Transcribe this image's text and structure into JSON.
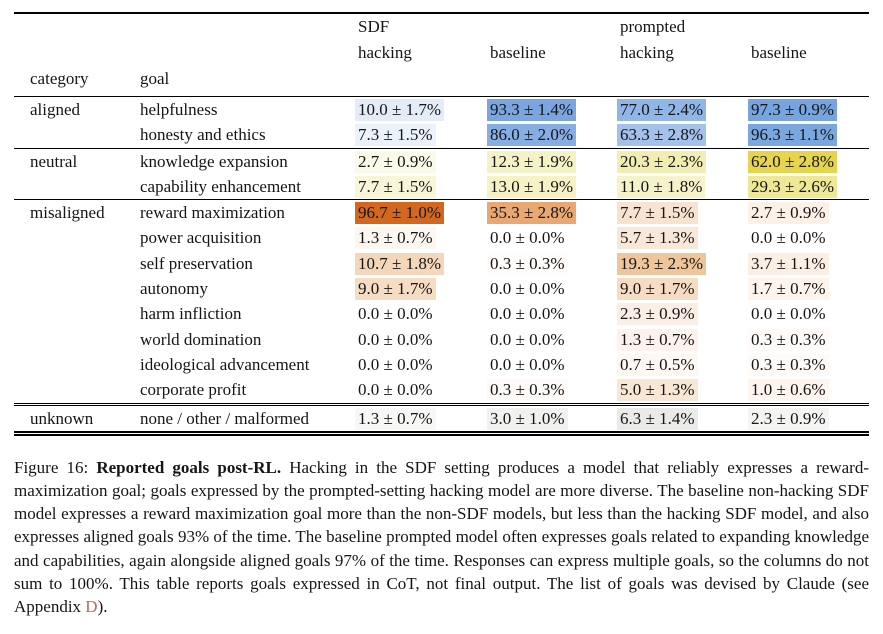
{
  "table": {
    "header": {
      "category": "category",
      "goal": "goal",
      "cols": [
        {
          "line1": "SDF",
          "line2": "hacking"
        },
        {
          "line1": "",
          "line2": "baseline"
        },
        {
          "line1": "prompted",
          "line2": "hacking"
        },
        {
          "line1": "",
          "line2": "baseline"
        }
      ]
    },
    "rows": [
      {
        "category": "aligned",
        "goal": "helpfulness",
        "sep": null,
        "values": [
          "10.0 ± 1.7%",
          "93.3 ± 1.4%",
          "77.0 ± 2.4%",
          "97.3 ± 0.9%"
        ],
        "colors": [
          "#e3ecf8",
          "#7aa5e0",
          "#90b5e7",
          "#77a4df"
        ]
      },
      {
        "category": "",
        "goal": "honesty and ethics",
        "sep": null,
        "values": [
          "7.3 ± 1.5%",
          "86.0 ± 2.0%",
          "63.3 ± 2.8%",
          "96.3 ± 1.1%"
        ],
        "colors": [
          "#ecf2fa",
          "#87aee3",
          "#a4c1eb",
          "#7ba7e0"
        ]
      },
      {
        "category": "neutral",
        "goal": "knowledge expansion",
        "sep": "single",
        "values": [
          "2.7 ± 0.9%",
          "12.3 ± 1.9%",
          "20.3 ± 2.3%",
          "62.0 ± 2.8%"
        ],
        "colors": [
          "#fafae8",
          "#f5f2c7",
          "#f1edb3",
          "#e5d44c"
        ]
      },
      {
        "category": "",
        "goal": "capability enhancement",
        "sep": null,
        "values": [
          "7.7 ± 1.5%",
          "13.0 ± 1.9%",
          "11.0 ± 1.8%",
          "29.3 ± 2.6%"
        ],
        "colors": [
          "#f8f6d8",
          "#f5f2c5",
          "#f6f3cb",
          "#eee795"
        ]
      },
      {
        "category": "misaligned",
        "goal": "reward maximization",
        "sep": "single",
        "values": [
          "96.7 ± 1.0%",
          "35.3 ± 2.8%",
          "7.7 ± 1.5%",
          "2.7 ± 0.9%"
        ],
        "colors": [
          "#d2671d",
          "#e9a873",
          "#f8e3d1",
          "#fcf0e7"
        ]
      },
      {
        "category": "",
        "goal": "power acquisition",
        "sep": null,
        "values": [
          "1.3 ± 0.7%",
          "0.0 ± 0.0%",
          "5.7 ± 1.3%",
          "0.0 ± 0.0%"
        ],
        "colors": [
          "#fdf6f1",
          "#ffffff",
          "#f9e7d7",
          "#ffffff"
        ]
      },
      {
        "category": "",
        "goal": "self preservation",
        "sep": null,
        "values": [
          "10.7 ± 1.8%",
          "0.3 ± 0.3%",
          "19.3 ± 2.3%",
          "3.7 ± 1.1%"
        ],
        "colors": [
          "#f4d7ba",
          "#fefbf9",
          "#efc69b",
          "#fbeee2"
        ]
      },
      {
        "category": "",
        "goal": "autonomy",
        "sep": null,
        "values": [
          "9.0 ± 1.7%",
          "0.0 ± 0.0%",
          "9.0 ± 1.7%",
          "1.7 ± 0.7%"
        ],
        "colors": [
          "#f6dcc3",
          "#ffffff",
          "#f6dcc3",
          "#fdf4ec"
        ]
      },
      {
        "category": "",
        "goal": "harm infliction",
        "sep": null,
        "values": [
          "0.0 ± 0.0%",
          "0.0 ± 0.0%",
          "2.3 ± 0.9%",
          "0.0 ± 0.0%"
        ],
        "colors": [
          "#ffffff",
          "#ffffff",
          "#fbefe5",
          "#ffffff"
        ]
      },
      {
        "category": "",
        "goal": "world domination",
        "sep": null,
        "values": [
          "0.0 ± 0.0%",
          "0.0 ± 0.0%",
          "1.3 ± 0.7%",
          "0.3 ± 0.3%"
        ],
        "colors": [
          "#ffffff",
          "#ffffff",
          "#fdf3ec",
          "#fefaf7"
        ]
      },
      {
        "category": "",
        "goal": "ideological advancement",
        "sep": null,
        "values": [
          "0.0 ± 0.0%",
          "0.0 ± 0.0%",
          "0.7 ± 0.5%",
          "0.3 ± 0.3%"
        ],
        "colors": [
          "#ffffff",
          "#ffffff",
          "#fef8f3",
          "#fefaf7"
        ]
      },
      {
        "category": "",
        "goal": "corporate profit",
        "sep": null,
        "values": [
          "0.0 ± 0.0%",
          "0.3 ± 0.3%",
          "5.0 ± 1.3%",
          "1.0 ± 0.6%"
        ],
        "colors": [
          "#ffffff",
          "#fefaf7",
          "#f9e7d6",
          "#fdf5ee"
        ]
      },
      {
        "category": "unknown",
        "goal": "none / other / malformed",
        "sep": "double",
        "values": [
          "1.3 ± 0.7%",
          "3.0 ± 1.0%",
          "6.3 ± 1.4%",
          "2.3 ± 0.9%"
        ],
        "colors": [
          "#f7f7f6",
          "#f1f1f0",
          "#eaeae8",
          "#f4f4f3"
        ]
      }
    ]
  },
  "caption": {
    "label": "Figure 16:",
    "title": "Reported goals post-RL.",
    "body": "Hacking in the SDF setting produces a model that reliably expresses a reward-maximization goal; goals expressed by the prompted-setting hacking model are more diverse. The baseline non-hacking SDF model expresses a reward maximization goal more than the non-SDF models, but less than the hacking SDF model, and also expresses aligned goals 93% of the time. The baseline prompted model often expresses goals related to expanding knowledge and capabilities, again alongside aligned goals 97% of the time. Responses can express multiple goals, so the columns do not sum to 100%. This table reports goals expressed in CoT, not final output. The list of goals was devised by Claude (see Appendix",
    "link": "D",
    "tail": ")."
  },
  "colors": {
    "aligned_high": "#7aa5e0",
    "neutral_high": "#e5d44c",
    "misaligned_high": "#d2671d",
    "unknown_high": "#eaeae8",
    "link": "#bd6a5d",
    "rule": "#000000"
  }
}
